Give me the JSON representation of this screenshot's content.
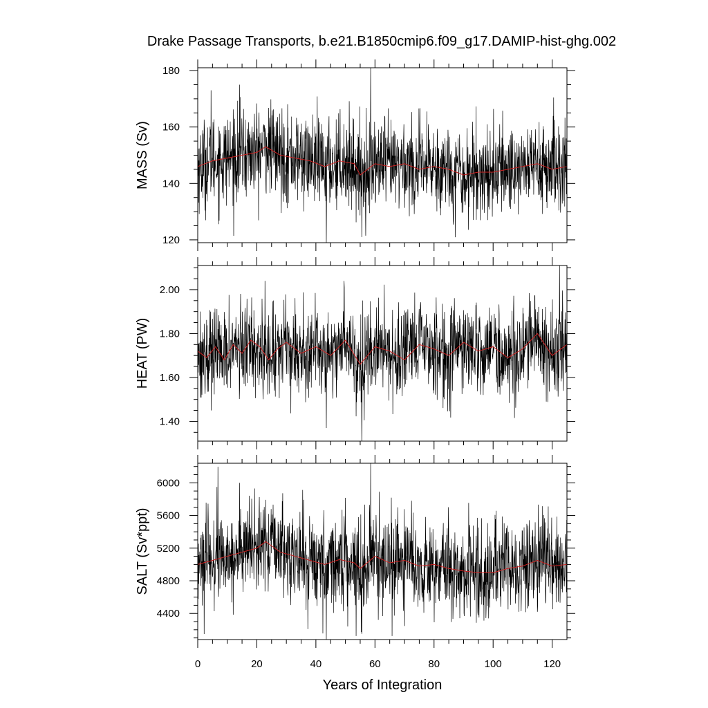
{
  "chart_data": {
    "title": "Drake Passage Transports, b.e21.B1850cmip6.f09_g17.DAMIP-hist-ghg.002",
    "xlabel": "Years of Integration",
    "xlim": [
      0,
      125
    ],
    "xticks": [
      0,
      20,
      40,
      60,
      80,
      100,
      120
    ],
    "xtick_labels": [
      "0",
      "20",
      "40",
      "60",
      "80",
      "100",
      "120"
    ],
    "panels": [
      {
        "type": "line",
        "ylabel": "MASS (Sv)",
        "ylim": [
          119,
          181
        ],
        "yticks": [
          120,
          140,
          160,
          180
        ],
        "ytick_labels": [
          "120",
          "140",
          "160",
          "180"
        ],
        "series": [
          {
            "role": "monthly",
            "color": "#000000",
            "baseline": 146,
            "amplitude": 8,
            "start": 0,
            "end": 125
          },
          {
            "role": "annual-mean",
            "color": "#d02020",
            "start": 0,
            "end": 125,
            "x": [
              0,
              5,
              10,
              15,
              20,
              23,
              28,
              33,
              38,
              43,
              48,
              53,
              55,
              60,
              65,
              70,
              75,
              80,
              85,
              90,
              95,
              100,
              105,
              110,
              115,
              120,
              125
            ],
            "values": [
              146,
              148,
              149,
              150,
              151,
              153,
              150,
              149,
              148,
              146,
              148,
              147,
              143,
              147,
              146,
              147,
              145,
              146,
              145,
              143,
              144,
              144,
              145,
              146,
              147,
              145,
              146
            ]
          }
        ],
        "extremes": [
          {
            "x": 43.5,
            "value": 119
          },
          {
            "x": 58.5,
            "value": 181
          },
          {
            "x": 55.5,
            "value": 121
          },
          {
            "x": 14.2,
            "value": 175
          },
          {
            "x": 4.5,
            "value": 173
          }
        ]
      },
      {
        "type": "line",
        "ylabel": "HEAT (PW)",
        "ylim": [
          1.31,
          2.11
        ],
        "yticks": [
          1.4,
          1.6,
          1.8,
          2.0
        ],
        "ytick_labels": [
          "1.40",
          "1.60",
          "1.80",
          "2.00"
        ],
        "series": [
          {
            "role": "monthly",
            "color": "#000000",
            "baseline": 1.72,
            "amplitude": 0.1,
            "start": 0,
            "end": 125
          },
          {
            "role": "annual-mean",
            "color": "#d02020",
            "start": 0,
            "end": 125,
            "x": [
              0,
              3,
              6,
              9,
              12,
              15,
              18,
              21,
              24,
              27,
              30,
              35,
              40,
              45,
              50,
              55,
              60,
              65,
              70,
              75,
              80,
              85,
              90,
              95,
              100,
              105,
              110,
              115,
              120,
              125
            ],
            "values": [
              1.72,
              1.69,
              1.74,
              1.68,
              1.75,
              1.71,
              1.77,
              1.74,
              1.68,
              1.73,
              1.76,
              1.71,
              1.74,
              1.7,
              1.77,
              1.66,
              1.74,
              1.72,
              1.68,
              1.75,
              1.73,
              1.7,
              1.76,
              1.72,
              1.74,
              1.69,
              1.73,
              1.8,
              1.7,
              1.75
            ]
          }
        ],
        "extremes": [
          {
            "x": 55.5,
            "value": 1.31
          },
          {
            "x": 43.5,
            "value": 1.37
          },
          {
            "x": 122.5,
            "value": 2.11
          },
          {
            "x": 22.8,
            "value": 2.04
          },
          {
            "x": 49.5,
            "value": 2.04
          }
        ]
      },
      {
        "type": "line",
        "ylabel": "SALT (Sv*ppt)",
        "ylim": [
          4080,
          6240
        ],
        "yticks": [
          4400,
          4800,
          5200,
          5600,
          6000
        ],
        "ytick_labels": [
          "4400",
          "4800",
          "5200",
          "5600",
          "6000"
        ],
        "series": [
          {
            "role": "monthly",
            "color": "#000000",
            "baseline": 5020,
            "amplitude": 280,
            "start": 0,
            "end": 125
          },
          {
            "role": "annual-mean",
            "color": "#d02020",
            "start": 0,
            "end": 125,
            "x": [
              0,
              5,
              10,
              15,
              20,
              23,
              28,
              33,
              38,
              43,
              48,
              53,
              55,
              60,
              65,
              70,
              75,
              80,
              85,
              90,
              95,
              100,
              105,
              110,
              115,
              120,
              125
            ],
            "values": [
              5000,
              5050,
              5100,
              5150,
              5200,
              5280,
              5150,
              5100,
              5050,
              5000,
              5060,
              5020,
              4950,
              5100,
              5020,
              5050,
              4980,
              5000,
              4950,
              4920,
              4900,
              4900,
              4950,
              4980,
              5050,
              4980,
              5000
            ]
          }
        ],
        "extremes": [
          {
            "x": 43.5,
            "value": 4080
          },
          {
            "x": 58.5,
            "value": 6240
          },
          {
            "x": 55.5,
            "value": 4150
          },
          {
            "x": 14.2,
            "value": 6000
          },
          {
            "x": 6.5,
            "value": 5950
          }
        ]
      }
    ]
  }
}
